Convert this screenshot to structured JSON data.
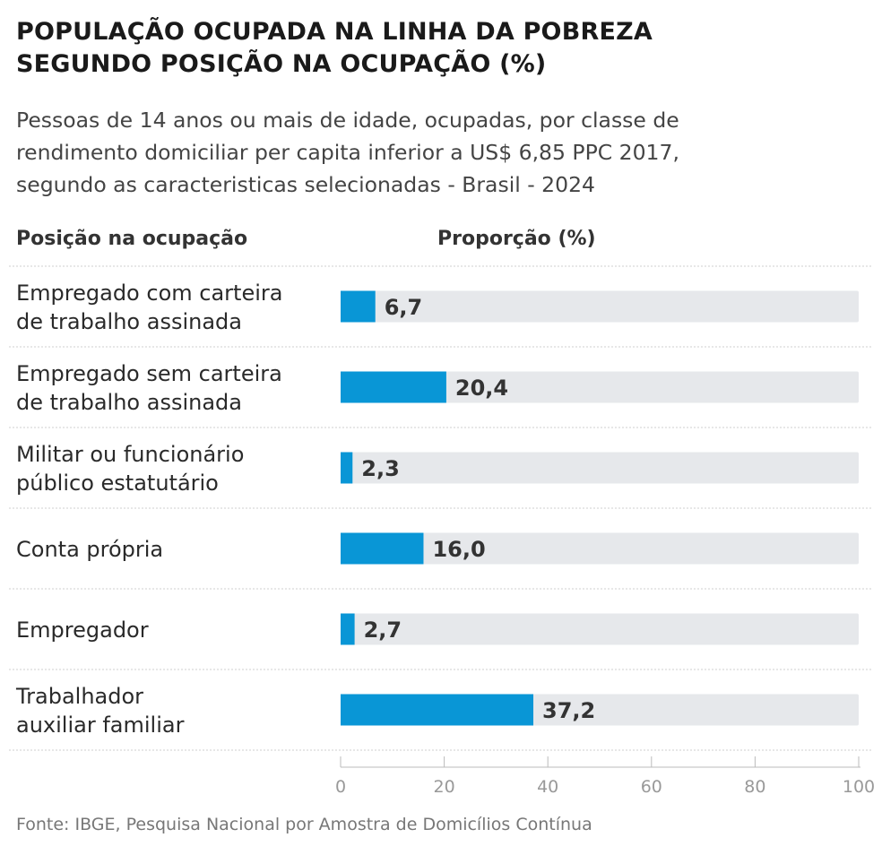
{
  "title_line1": "POPULAÇÃO OCUPADA NA LINHA DA POBREZA",
  "title_line2": "SEGUNDO POSIÇÃO NA OCUPAÇÃO (%)",
  "subtitle_line1": "Pessoas de 14 anos ou mais de idade, ocupadas, por classe de",
  "subtitle_line2": "rendimento domiciliar per capita inferior a US$ 6,85 PPC 2017,",
  "subtitle_line3": "segundo as caracteristicas selecionadas - Brasil - 2024",
  "column_headers": {
    "category": "Posição na ocupação",
    "value": "Proporção (%)"
  },
  "source": "Fonte: IBGE, Pesquisa Nacional por Amostra de Domicílios Contínua",
  "colors": {
    "bar": "#0996d6",
    "track": "#e6e8eb",
    "divider": "#cfcfcf",
    "axis": "#bbbbbb",
    "tick_text": "#999999",
    "value_text": "#333333"
  },
  "chart_data": {
    "type": "bar",
    "orientation": "horizontal",
    "categories": [
      [
        "Empregado com carteira",
        "de trabalho assinada"
      ],
      [
        "Empregado sem carteira",
        "de trabalho assinada"
      ],
      [
        "Militar ou funcionário",
        "público estatutário"
      ],
      [
        "Conta própria"
      ],
      [
        "Empregador"
      ],
      [
        "Trabalhador",
        "auxiliar familiar"
      ]
    ],
    "values": [
      6.7,
      20.4,
      2.3,
      16.0,
      2.7,
      37.2
    ],
    "value_labels": [
      "6,7",
      "20,4",
      "2,3",
      "16,0",
      "2,7",
      "37,2"
    ],
    "xlim": [
      0,
      100
    ],
    "xticks": [
      0,
      20,
      40,
      60,
      80,
      100
    ],
    "xlabel": "",
    "ylabel": ""
  }
}
